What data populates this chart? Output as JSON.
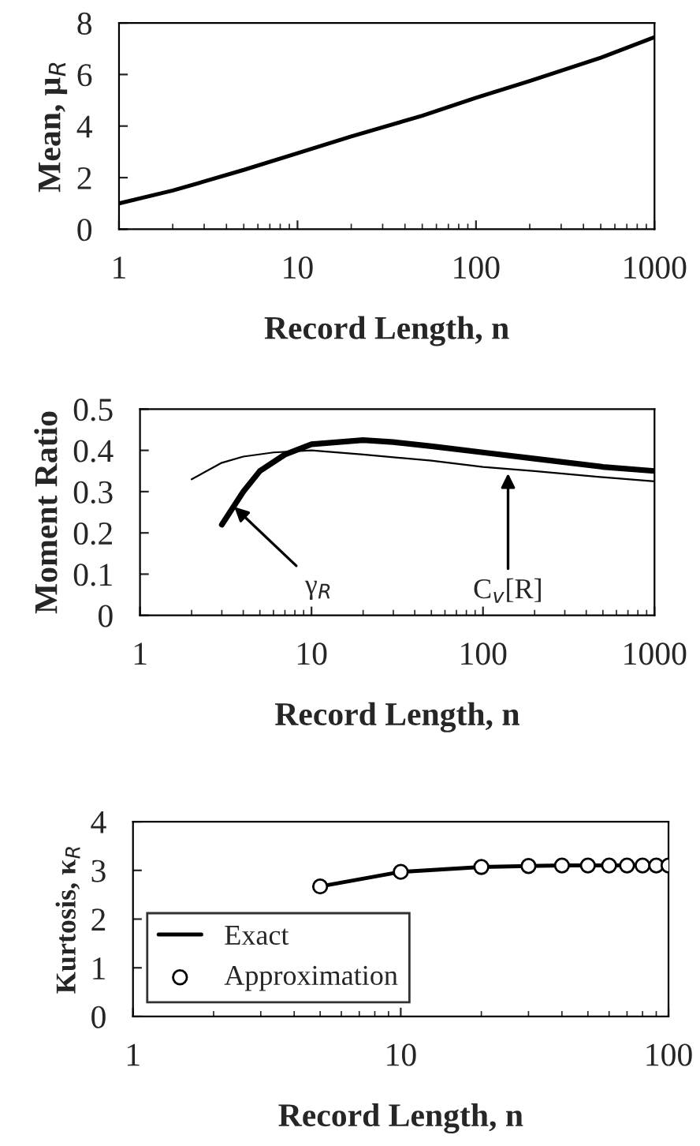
{
  "chart_data": [
    {
      "type": "line",
      "xlabel": "Record Length, n",
      "ylabel": "Mean, μ$_{R}$",
      "log": "x",
      "xlim": [
        1,
        1000
      ],
      "xticks": [
        1,
        10,
        100,
        1000
      ],
      "ylim": [
        0,
        8
      ],
      "yticks": [
        0,
        2,
        4,
        6,
        8
      ],
      "grid": false,
      "legend": false,
      "series": [
        {
          "color": "#000000",
          "x": [
            1,
            2,
            3,
            5,
            10,
            20,
            50,
            100,
            200,
            500,
            1000
          ],
          "values": [
            1.0,
            1.5,
            1.85,
            2.3,
            2.95,
            3.6,
            4.4,
            5.1,
            5.75,
            6.65,
            7.45
          ]
        }
      ]
    },
    {
      "type": "line",
      "xlabel": "Record Length, n",
      "ylabel": "Moment Ratio",
      "log": "x",
      "xlim": [
        1,
        1000
      ],
      "xticks": [
        1,
        10,
        100,
        1000
      ],
      "ylim": [
        0,
        0.5
      ],
      "yticks": [
        0,
        0.1,
        0.2,
        0.3,
        0.4,
        0.5
      ],
      "grid": false,
      "legend": false,
      "annotations": [
        {
          "text": "γ$_{R}$",
          "x": 3.4,
          "y": 0.27
        },
        {
          "text": "C$_{v}$[R]",
          "x": 140,
          "y": 0.355
        }
      ],
      "series": [
        {
          "color": "#000000",
          "x": [
            3,
            4,
            5,
            7,
            10,
            20,
            30,
            50,
            100,
            200,
            500,
            1000
          ],
          "values": [
            0.22,
            0.3,
            0.35,
            0.39,
            0.415,
            0.425,
            0.42,
            0.41,
            0.395,
            0.38,
            0.36,
            0.35
          ]
        },
        {
          "color": "#000000",
          "x": [
            2,
            3,
            4,
            6,
            10,
            20,
            50,
            100,
            200,
            500,
            1000
          ],
          "values": [
            0.33,
            0.37,
            0.385,
            0.395,
            0.4,
            0.39,
            0.375,
            0.36,
            0.35,
            0.335,
            0.325
          ]
        }
      ]
    },
    {
      "type": "line",
      "xlabel": "Record Length, n",
      "ylabel": "Kurtosis, κ$_{R}$",
      "log": "x",
      "xlim": [
        1,
        100
      ],
      "xticks": [
        1,
        10,
        100
      ],
      "ylim": [
        0,
        4
      ],
      "yticks": [
        0,
        1,
        2,
        3,
        4
      ],
      "grid": false,
      "legend": "bottom left",
      "series": [
        {
          "name": "Exact",
          "color": "#000000",
          "x": [
            5,
            10,
            20,
            30,
            40,
            50,
            60,
            70,
            80,
            90,
            100
          ],
          "values": [
            2.67,
            2.97,
            3.07,
            3.09,
            3.1,
            3.1,
            3.1,
            3.1,
            3.1,
            3.1,
            3.1
          ]
        },
        {
          "name": "Approximation",
          "type": "scatter",
          "marker": "circle",
          "color": "#000000",
          "x": [
            5,
            10,
            20,
            30,
            40,
            50,
            60,
            70,
            80,
            90,
            100
          ],
          "values": [
            2.67,
            2.97,
            3.07,
            3.09,
            3.1,
            3.1,
            3.1,
            3.1,
            3.1,
            3.1,
            3.1
          ]
        }
      ]
    }
  ]
}
